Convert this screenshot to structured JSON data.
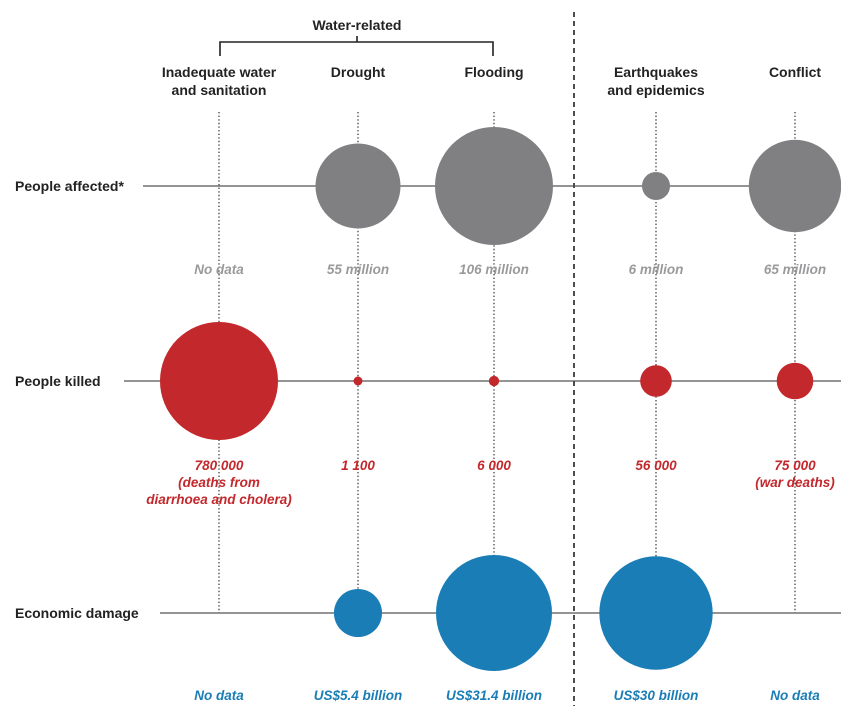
{
  "chart_data": {
    "type": "bubble-grid",
    "group_label": "Water-related",
    "columns": [
      {
        "label": [
          "Inadequate water",
          "and sanitation"
        ]
      },
      {
        "label": [
          "Drought"
        ]
      },
      {
        "label": [
          "Flooding"
        ]
      },
      {
        "label": [
          "Earthquakes",
          "and epidemics"
        ]
      },
      {
        "label": [
          "Conflict"
        ]
      }
    ],
    "rows": [
      {
        "label": "People affected*",
        "color": "#808083",
        "text_color": "#9a9a9c",
        "values": [
          null,
          55,
          106,
          6,
          65
        ],
        "unit": "million",
        "value_labels": [
          [
            "No data"
          ],
          [
            "55 million"
          ],
          [
            "106 million"
          ],
          [
            "6 million"
          ],
          [
            "65 million"
          ]
        ]
      },
      {
        "label": "People killed",
        "color": "#c3282c",
        "text_color": "#c3282c",
        "values": [
          780000,
          1100,
          6000,
          56000,
          75000
        ],
        "unit": "people",
        "value_labels": [
          [
            "780 000",
            "(deaths from",
            "diarrhoea and cholera)"
          ],
          [
            "1 100"
          ],
          [
            "6 000"
          ],
          [
            "56 000"
          ],
          [
            "75 000",
            "(war deaths)"
          ]
        ]
      },
      {
        "label": "Economic damage",
        "color": "#1a7db6",
        "text_color": "#1a7db6",
        "values": [
          null,
          5.4,
          31.4,
          30,
          null
        ],
        "unit": "US$ billion",
        "value_labels": [
          [
            "No data"
          ],
          [
            "US$5.4 billion"
          ],
          [
            "US$31.4 billion"
          ],
          [
            "US$30 billion"
          ],
          [
            "No data"
          ]
        ]
      }
    ]
  }
}
